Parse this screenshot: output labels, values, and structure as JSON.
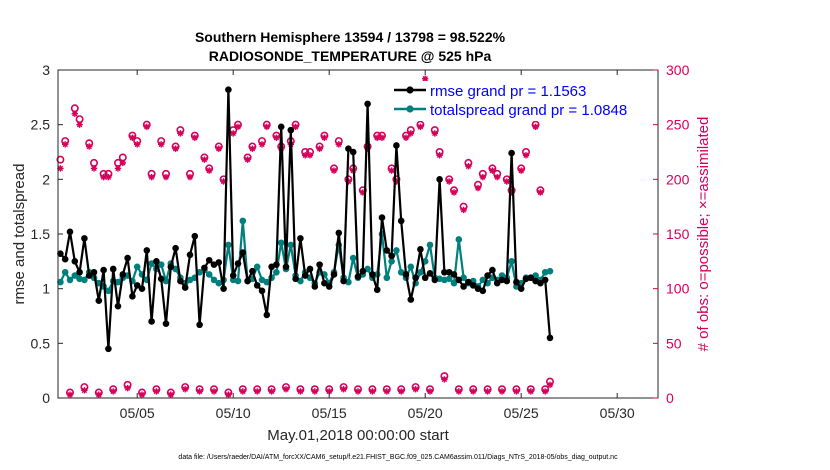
{
  "chart_data": {
    "type": "line",
    "title_line1": "Southern Hemisphere 13594 / 13798 = 98.522%",
    "title_line2": "RADIOSONDE_TEMPERATURE @ 525 hPa",
    "xlabel": "May.01,2018 00:00:00 start",
    "ylabel_left": "rmse and totalspread",
    "ylabel_right": "# of obs: o=possible; ×=assimilated",
    "footer": "data file: /Users/raeder/DAI/ATM_forcXX/CAM6_setup/f.e21.FHIST_BGC.f09_025.CAM6assim.011/Diags_NTrS_2018-05/obs_diag_output.nc",
    "xlim": [
      0.875,
      32.125
    ],
    "ylim_left": [
      0,
      3
    ],
    "ylim_right": [
      0,
      300
    ],
    "x_ticks": [
      {
        "x": 5,
        "label": "05/05"
      },
      {
        "x": 10,
        "label": "05/10"
      },
      {
        "x": 15,
        "label": "05/15"
      },
      {
        "x": 20,
        "label": "05/20"
      },
      {
        "x": 25,
        "label": "05/25"
      },
      {
        "x": 30,
        "label": "05/30"
      }
    ],
    "y_ticks_left": [
      "0",
      "0.5",
      "1",
      "1.5",
      "2",
      "2.5",
      "3"
    ],
    "y_ticks_right": [
      "0",
      "50",
      "100",
      "150",
      "200",
      "250",
      "300"
    ],
    "legend": [
      {
        "label": "rmse grand pr = 1.1563",
        "color": "#000000"
      },
      {
        "label": "totalspread grand pr = 1.0848",
        "color": "#007f7f"
      }
    ],
    "colors": {
      "rmse": "#000000",
      "spread": "#007f7f",
      "obs": "#d6005a",
      "legend_text": "#0000ff"
    },
    "x_start": 1,
    "x_step": 0.25,
    "series": [
      {
        "name": "rmse",
        "axis": "left",
        "values": [
          1.32,
          1.27,
          1.52,
          1.25,
          1.15,
          1.46,
          1.12,
          1.15,
          0.89,
          1.17,
          0.45,
          1.18,
          0.84,
          1.13,
          1.28,
          0.93,
          1.03,
          1.0,
          1.35,
          0.7,
          1.25,
          1.09,
          0.68,
          1.2,
          1.37,
          1.07,
          1.01,
          1.31,
          1.48,
          0.67,
          1.19,
          1.26,
          1.22,
          1.24,
          1.0,
          2.82,
          1.12,
          1.23,
          1.33,
          1.07,
          1.16,
          1.03,
          0.98,
          0.76,
          1.2,
          1.22,
          2.48,
          1.2,
          2.45,
          1.09,
          1.46,
          1.12,
          1.18,
          1.02,
          1.22,
          1.05,
          1.02,
          1.13,
          1.51,
          1.07,
          2.28,
          2.25,
          1.11,
          1.16,
          2.69,
          1.13,
          0.99,
          1.65,
          1.35,
          1.3,
          2.31,
          1.62,
          1.13,
          0.9,
          1.1,
          1.36,
          1.1,
          1.14,
          1.08,
          2.0,
          1.15,
          1.15,
          1.13,
          1.08,
          1.02,
          1.06,
          1.03,
          1.0,
          0.98,
          1.12,
          1.17,
          1.05,
          1.08,
          1.07,
          2.24,
          1.06,
          1.0,
          1.09,
          1.1,
          1.07,
          1.05,
          1.08,
          0.55
        ]
      },
      {
        "name": "totalspread",
        "axis": "left",
        "values": [
          1.06,
          1.15,
          1.08,
          1.12,
          1.09,
          1.08,
          1.15,
          1.1,
          1.05,
          1.02,
          0.98,
          1.07,
          1.06,
          1.1,
          1.12,
          1.07,
          1.2,
          1.13,
          1.08,
          1.23,
          1.18,
          1.22,
          1.07,
          1.23,
          1.18,
          1.1,
          1.05,
          1.08,
          1.1,
          1.15,
          1.17,
          1.13,
          1.08,
          1.05,
          1.08,
          1.4,
          1.08,
          1.07,
          1.62,
          1.07,
          1.09,
          1.2,
          1.08,
          1.06,
          1.1,
          1.15,
          1.42,
          1.18,
          1.4,
          1.12,
          1.07,
          1.15,
          1.1,
          1.05,
          1.15,
          1.13,
          1.05,
          1.15,
          1.4,
          1.1,
          1.06,
          1.28,
          1.1,
          1.13,
          1.18,
          1.1,
          1.13,
          1.5,
          1.1,
          1.25,
          1.35,
          1.15,
          1.1,
          1.2,
          1.05,
          1.15,
          1.25,
          1.4,
          1.1,
          1.09,
          1.08,
          1.09,
          1.05,
          1.45,
          1.1,
          1.05,
          1.07,
          1.02,
          1.08,
          1.05,
          1.1,
          1.08,
          1.12,
          1.1,
          1.25,
          1.02,
          1.05,
          1.1,
          1.1,
          1.12,
          1.08,
          1.15,
          1.16
        ]
      },
      {
        "name": "obs_possible",
        "axis": "right",
        "values": [
          218,
          235,
          5,
          265,
          255,
          10,
          233,
          215,
          5,
          205,
          205,
          8,
          215,
          220,
          12,
          240,
          235,
          5,
          250,
          205,
          8,
          235,
          205,
          5,
          230,
          245,
          10,
          205,
          240,
          8,
          220,
          210,
          8,
          230,
          200,
          5,
          245,
          250,
          8,
          220,
          230,
          8,
          235,
          250,
          8,
          240,
          230,
          10,
          235,
          250,
          8,
          225,
          225,
          8,
          230,
          240,
          8,
          210,
          235,
          10,
          200,
          210,
          8,
          190,
          230,
          8,
          240,
          240,
          8,
          210,
          200,
          8,
          240,
          245,
          10,
          250,
          285,
          8,
          245,
          225,
          20,
          200,
          190,
          8,
          175,
          215,
          8,
          195,
          205,
          8,
          210,
          205,
          8,
          200,
          190,
          8,
          210,
          225,
          8,
          250,
          190,
          8,
          15
        ]
      },
      {
        "name": "obs_assimilated",
        "axis": "right",
        "values": [
          210,
          232,
          3,
          260,
          250,
          7,
          230,
          210,
          3,
          202,
          202,
          6,
          210,
          215,
          9,
          238,
          232,
          3,
          248,
          202,
          6,
          232,
          202,
          3,
          228,
          242,
          8,
          202,
          238,
          6,
          218,
          208,
          6,
          228,
          198,
          3,
          242,
          248,
          6,
          218,
          228,
          6,
          232,
          248,
          6,
          238,
          228,
          8,
          232,
          248,
          6,
          222,
          222,
          6,
          228,
          238,
          6,
          208,
          232,
          8,
          198,
          208,
          6,
          188,
          228,
          6,
          238,
          238,
          6,
          208,
          198,
          6,
          238,
          242,
          8,
          248,
          292,
          6,
          242,
          222,
          17,
          198,
          188,
          6,
          172,
          212,
          6,
          192,
          202,
          6,
          208,
          202,
          6,
          198,
          188,
          6,
          208,
          222,
          6,
          248,
          188,
          6,
          12
        ]
      }
    ]
  }
}
